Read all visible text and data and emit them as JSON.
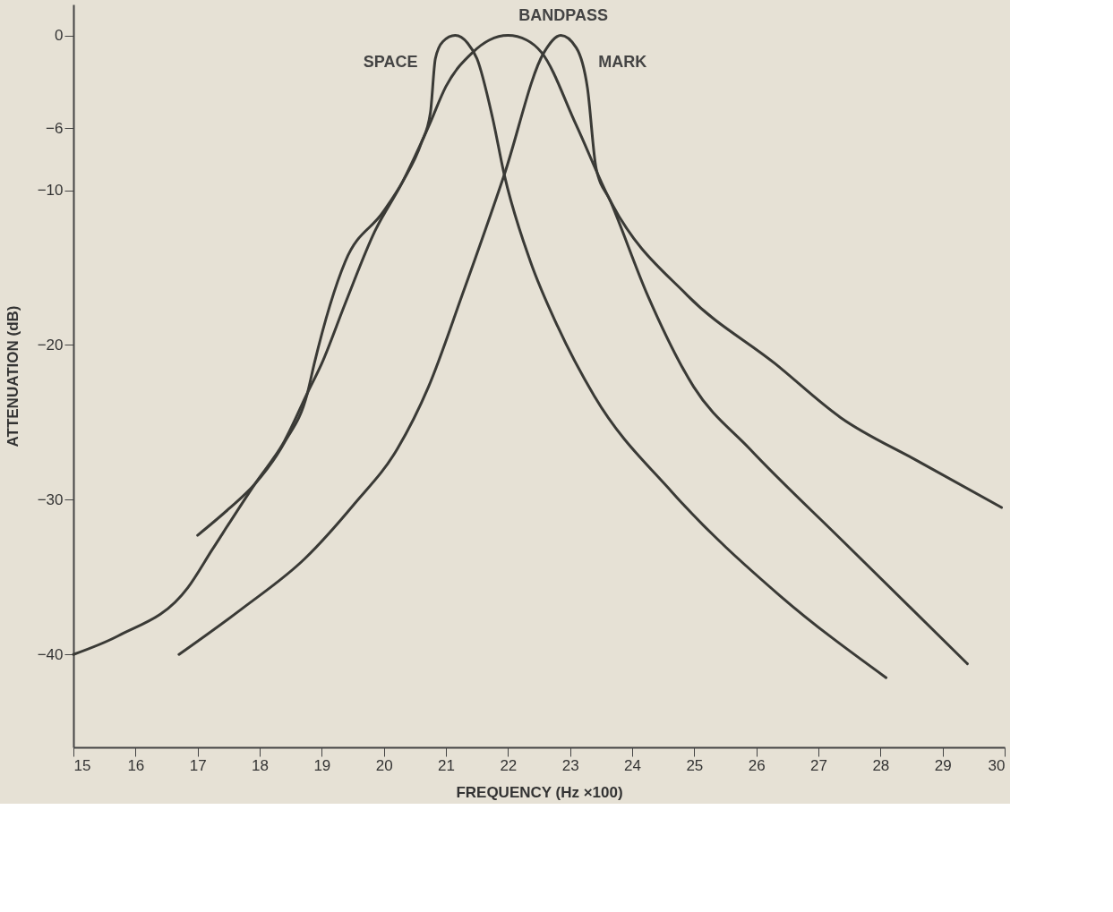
{
  "chart_data": {
    "type": "line",
    "xlabel": "FREQUENCY (Hz ×100)",
    "ylabel": "ATTENUATION (dB)",
    "xlim": [
      15,
      30
    ],
    "xticks": [
      15,
      16,
      17,
      18,
      19,
      20,
      21,
      22,
      23,
      24,
      25,
      26,
      27,
      28,
      29,
      30
    ],
    "ylim": [
      -46,
      2
    ],
    "yticks": [
      0,
      -6,
      -10,
      -20,
      -30,
      -40
    ],
    "grid": false,
    "legend": false,
    "marker": "none",
    "line_style": "solid",
    "series": [
      {
        "name": "SPACE",
        "color": "#3a3a36",
        "x": [
          17.0,
          17.5,
          17.92,
          18.4,
          18.77,
          18.88,
          19.38,
          19.99,
          20.31,
          20.6,
          20.75,
          20.83,
          20.95,
          21.15,
          21.35,
          21.5,
          21.75,
          21.94,
          22.36,
          22.8,
          23.39,
          24.64,
          26.38,
          28.09
        ],
        "values": [
          -32.3,
          -30.6,
          -29.0,
          -26.3,
          -23.1,
          -21.2,
          -14.6,
          -11.4,
          -9.4,
          -7.0,
          -5.0,
          -1.5,
          -0.4,
          0.0,
          -0.5,
          -1.5,
          -5.3,
          -9.0,
          -14.6,
          -18.8,
          -23.3,
          -29.5,
          -36.2,
          -41.5
        ]
      },
      {
        "name": "BANDPASS",
        "color": "#3a3a36",
        "x": [
          15.0,
          15.72,
          16.84,
          17.24,
          17.92,
          18.4,
          18.77,
          19.0,
          19.38,
          19.85,
          20.31,
          20.73,
          21.0,
          21.43,
          21.7,
          22.0,
          22.3,
          22.54,
          23.1,
          23.65,
          24.89,
          26.3,
          27.36,
          28.6,
          29.95
        ],
        "values": [
          -40.0,
          -38.8,
          -35.7,
          -33.2,
          -29.0,
          -26.2,
          -23.1,
          -21.2,
          -17.3,
          -12.7,
          -9.4,
          -5.8,
          -3.3,
          -1.1,
          -0.3,
          0.0,
          -0.3,
          -1.1,
          -5.8,
          -10.7,
          -16.8,
          -21.2,
          -24.7,
          -27.5,
          -30.5
        ]
      },
      {
        "name": "MARK",
        "color": "#3a3a36",
        "x": [
          16.7,
          17.73,
          18.73,
          19.52,
          20.22,
          20.72,
          21.26,
          21.94,
          22.58,
          22.85,
          23.1,
          23.28,
          23.42,
          23.65,
          24.25,
          24.99,
          25.89,
          27.4,
          29.4
        ],
        "values": [
          -40.0,
          -37.0,
          -33.8,
          -30.3,
          -26.7,
          -22.7,
          -16.8,
          -9.0,
          -1.1,
          0.0,
          -0.8,
          -3.4,
          -8.6,
          -10.7,
          -16.8,
          -22.7,
          -26.7,
          -32.7,
          -40.6
        ]
      }
    ]
  }
}
